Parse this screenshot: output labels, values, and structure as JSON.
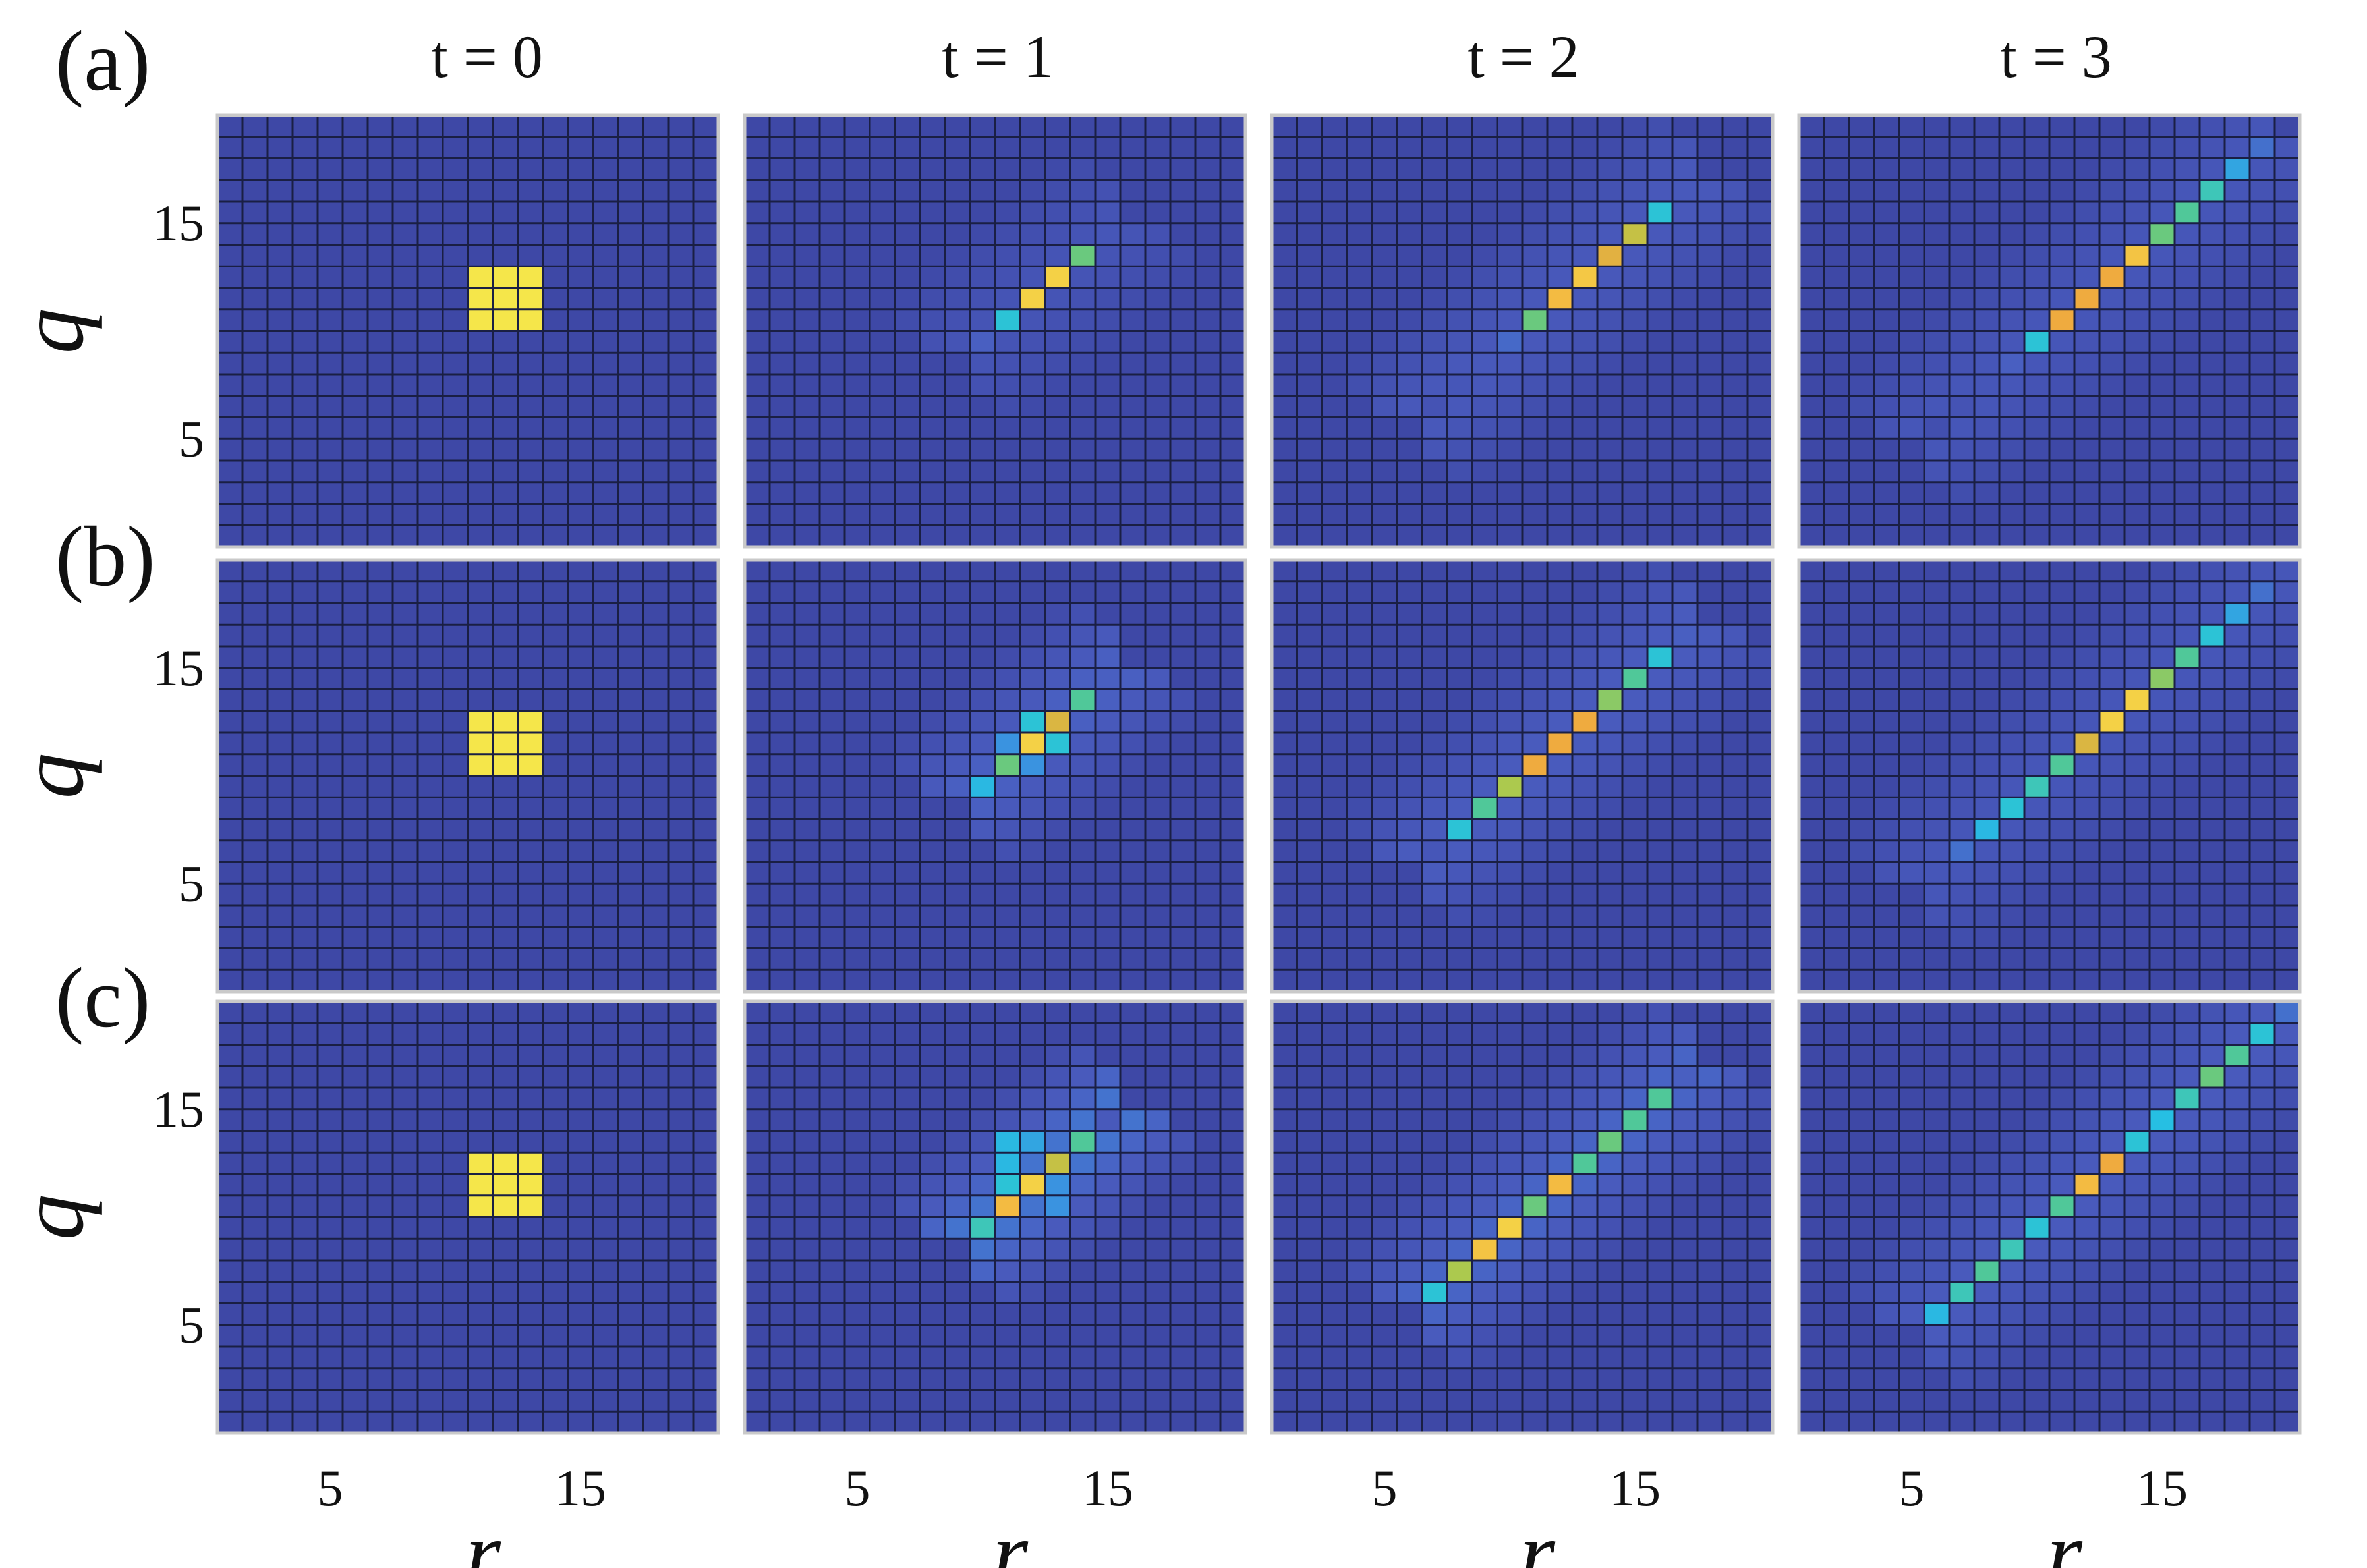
{
  "figure": {
    "row_labels": [
      "(a)",
      "(b)",
      "(c)"
    ],
    "col_titles": [
      "t = 0",
      "t = 1",
      "t = 2",
      "t = 3"
    ]
  },
  "colors": {
    "background": "#3e48a6",
    "grid_line": "#1a1f44",
    "panel_border": "#c9c9c9",
    "colormap": [
      "#3e48a6",
      "#4a5cbf",
      "#3c8ee0",
      "#25c2e3",
      "#57c98c",
      "#b6c947",
      "#f2a93f",
      "#f5e64a"
    ]
  },
  "chart_data": [
    {
      "type": "heatmap",
      "row": "(a)",
      "title": "t = 0",
      "xlabel": "",
      "ylabel": "q",
      "xticks": [],
      "yticks": [
        5,
        15
      ],
      "xlim": [
        0,
        20
      ],
      "ylim": [
        0,
        20
      ],
      "grid": true,
      "spread": 0,
      "cells": [
        [
          10,
          10,
          1
        ],
        [
          11,
          10,
          1
        ],
        [
          12,
          10,
          1
        ],
        [
          10,
          11,
          1
        ],
        [
          11,
          11,
          1
        ],
        [
          12,
          11,
          1
        ],
        [
          10,
          12,
          1
        ],
        [
          11,
          12,
          1
        ],
        [
          12,
          12,
          1
        ]
      ]
    },
    {
      "type": "heatmap",
      "row": "(a)",
      "title": "t = 1",
      "xlabel": "",
      "ylabel": "",
      "xticks": [],
      "yticks": [],
      "xlim": [
        0,
        20
      ],
      "ylim": [
        0,
        20
      ],
      "grid": true,
      "spread": 0.1,
      "cells": [
        [
          9,
          9,
          0.15
        ],
        [
          10,
          10,
          0.45
        ],
        [
          11,
          11,
          0.95
        ],
        [
          12,
          12,
          0.95
        ],
        [
          13,
          13,
          0.6
        ],
        [
          14,
          14,
          0.1
        ]
      ]
    },
    {
      "type": "heatmap",
      "row": "(a)",
      "title": "t = 2",
      "xlabel": "",
      "ylabel": "",
      "xticks": [],
      "yticks": [],
      "xlim": [
        0,
        20
      ],
      "ylim": [
        0,
        20
      ],
      "grid": true,
      "spread": 0.14,
      "cells": [
        [
          6,
          6,
          0.08
        ],
        [
          7,
          7,
          0.1
        ],
        [
          8,
          8,
          0.12
        ],
        [
          9,
          9,
          0.18
        ],
        [
          10,
          10,
          0.6
        ],
        [
          11,
          11,
          0.9
        ],
        [
          12,
          12,
          0.93
        ],
        [
          13,
          13,
          0.82
        ],
        [
          14,
          14,
          0.75
        ],
        [
          15,
          15,
          0.45
        ],
        [
          16,
          16,
          0.12
        ]
      ]
    },
    {
      "type": "heatmap",
      "row": "(a)",
      "title": "t = 3",
      "xlabel": "",
      "ylabel": "",
      "xticks": [],
      "yticks": [],
      "xlim": [
        0,
        20
      ],
      "ylim": [
        0,
        20
      ],
      "grid": true,
      "spread": 0.12,
      "cells": [
        [
          5,
          5,
          0.05
        ],
        [
          6,
          6,
          0.08
        ],
        [
          7,
          7,
          0.1
        ],
        [
          8,
          8,
          0.15
        ],
        [
          9,
          9,
          0.45
        ],
        [
          10,
          10,
          0.85
        ],
        [
          11,
          11,
          0.85
        ],
        [
          12,
          12,
          0.85
        ],
        [
          13,
          13,
          0.92
        ],
        [
          14,
          14,
          0.6
        ],
        [
          15,
          15,
          0.55
        ],
        [
          16,
          16,
          0.5
        ],
        [
          17,
          17,
          0.35
        ],
        [
          18,
          18,
          0.2
        ]
      ]
    },
    {
      "type": "heatmap",
      "row": "(b)",
      "title": "t = 0",
      "xlabel": "",
      "ylabel": "q",
      "xticks": [],
      "yticks": [
        5,
        15
      ],
      "xlim": [
        0,
        20
      ],
      "ylim": [
        0,
        20
      ],
      "grid": true,
      "spread": 0,
      "cells": [
        [
          10,
          10,
          1
        ],
        [
          11,
          10,
          1
        ],
        [
          12,
          10,
          1
        ],
        [
          10,
          11,
          1
        ],
        [
          11,
          11,
          1
        ],
        [
          12,
          11,
          1
        ],
        [
          10,
          12,
          1
        ],
        [
          11,
          12,
          1
        ],
        [
          12,
          12,
          1
        ]
      ]
    },
    {
      "type": "heatmap",
      "row": "(b)",
      "title": "t = 1",
      "xlabel": "",
      "ylabel": "",
      "xticks": [],
      "yticks": [],
      "xlim": [
        0,
        20
      ],
      "ylim": [
        0,
        20
      ],
      "grid": true,
      "spread": 0.18,
      "cells": [
        [
          9,
          9,
          0.4
        ],
        [
          10,
          10,
          0.6
        ],
        [
          11,
          11,
          0.95
        ],
        [
          12,
          12,
          0.8
        ],
        [
          13,
          13,
          0.55
        ],
        [
          11,
          12,
          0.45
        ],
        [
          12,
          11,
          0.45
        ],
        [
          10,
          11,
          0.3
        ],
        [
          11,
          10,
          0.3
        ],
        [
          14,
          14,
          0.15
        ]
      ]
    },
    {
      "type": "heatmap",
      "row": "(b)",
      "title": "t = 2",
      "xlabel": "",
      "ylabel": "",
      "xticks": [],
      "yticks": [],
      "xlim": [
        0,
        20
      ],
      "ylim": [
        0,
        20
      ],
      "grid": true,
      "spread": 0.16,
      "cells": [
        [
          7,
          7,
          0.45
        ],
        [
          8,
          8,
          0.55
        ],
        [
          9,
          9,
          0.7
        ],
        [
          10,
          10,
          0.85
        ],
        [
          11,
          11,
          0.85
        ],
        [
          12,
          12,
          0.85
        ],
        [
          13,
          13,
          0.65
        ],
        [
          14,
          14,
          0.55
        ],
        [
          15,
          15,
          0.45
        ],
        [
          16,
          16,
          0.15
        ],
        [
          6,
          6,
          0.1
        ]
      ]
    },
    {
      "type": "heatmap",
      "row": "(b)",
      "title": "t = 3",
      "xlabel": "",
      "ylabel": "",
      "xticks": [],
      "yticks": [],
      "xlim": [
        0,
        20
      ],
      "ylim": [
        0,
        20
      ],
      "grid": true,
      "spread": 0.12,
      "cells": [
        [
          5,
          5,
          0.1
        ],
        [
          6,
          6,
          0.2
        ],
        [
          7,
          7,
          0.4
        ],
        [
          8,
          8,
          0.45
        ],
        [
          9,
          9,
          0.5
        ],
        [
          10,
          10,
          0.55
        ],
        [
          11,
          11,
          0.8
        ],
        [
          12,
          12,
          0.95
        ],
        [
          13,
          13,
          0.95
        ],
        [
          14,
          14,
          0.65
        ],
        [
          15,
          15,
          0.55
        ],
        [
          16,
          16,
          0.45
        ],
        [
          17,
          17,
          0.35
        ],
        [
          18,
          18,
          0.2
        ],
        [
          19,
          19,
          0.1
        ]
      ]
    },
    {
      "type": "heatmap",
      "row": "(c)",
      "title": "t = 0",
      "xlabel": "r",
      "ylabel": "q",
      "xticks": [
        5,
        15
      ],
      "yticks": [
        5,
        15
      ],
      "xlim": [
        0,
        20
      ],
      "ylim": [
        0,
        20
      ],
      "grid": true,
      "spread": 0,
      "cells": [
        [
          10,
          10,
          1
        ],
        [
          11,
          10,
          1
        ],
        [
          12,
          10,
          1
        ],
        [
          10,
          11,
          1
        ],
        [
          11,
          11,
          1
        ],
        [
          12,
          11,
          1
        ],
        [
          10,
          12,
          1
        ],
        [
          11,
          12,
          1
        ],
        [
          12,
          12,
          1
        ]
      ]
    },
    {
      "type": "heatmap",
      "row": "(c)",
      "title": "t = 1",
      "xlabel": "r",
      "ylabel": "",
      "xticks": [
        5,
        15
      ],
      "yticks": [],
      "xlim": [
        0,
        20
      ],
      "ylim": [
        0,
        20
      ],
      "grid": true,
      "spread": 0.25,
      "cells": [
        [
          9,
          9,
          0.5
        ],
        [
          10,
          10,
          0.9
        ],
        [
          11,
          11,
          0.95
        ],
        [
          12,
          12,
          0.75
        ],
        [
          13,
          13,
          0.55
        ],
        [
          10,
          12,
          0.4
        ],
        [
          10,
          13,
          0.4
        ],
        [
          11,
          13,
          0.35
        ],
        [
          10,
          11,
          0.45
        ],
        [
          12,
          10,
          0.3
        ],
        [
          12,
          11,
          0.3
        ],
        [
          14,
          14,
          0.12
        ]
      ]
    },
    {
      "type": "heatmap",
      "row": "(c)",
      "title": "t = 2",
      "xlabel": "r",
      "ylabel": "",
      "xticks": [
        5,
        15
      ],
      "yticks": [],
      "xlim": [
        0,
        20
      ],
      "ylim": [
        0,
        20
      ],
      "grid": true,
      "spread": 0.2,
      "cells": [
        [
          6,
          6,
          0.45
        ],
        [
          7,
          7,
          0.7
        ],
        [
          8,
          8,
          0.92
        ],
        [
          9,
          9,
          0.95
        ],
        [
          10,
          10,
          0.6
        ],
        [
          11,
          11,
          0.9
        ],
        [
          12,
          12,
          0.55
        ],
        [
          13,
          13,
          0.6
        ],
        [
          14,
          14,
          0.55
        ],
        [
          15,
          15,
          0.55
        ],
        [
          16,
          16,
          0.15
        ]
      ]
    },
    {
      "type": "heatmap",
      "row": "(c)",
      "title": "t = 3",
      "xlabel": "r",
      "ylabel": "",
      "xticks": [
        5,
        15
      ],
      "yticks": [],
      "xlim": [
        0,
        20
      ],
      "ylim": [
        0,
        20
      ],
      "grid": true,
      "spread": 0.15,
      "cells": [
        [
          5,
          5,
          0.4
        ],
        [
          6,
          6,
          0.5
        ],
        [
          7,
          7,
          0.55
        ],
        [
          8,
          8,
          0.5
        ],
        [
          9,
          9,
          0.45
        ],
        [
          10,
          10,
          0.55
        ],
        [
          11,
          11,
          0.9
        ],
        [
          12,
          12,
          0.85
        ],
        [
          13,
          13,
          0.45
        ],
        [
          14,
          14,
          0.42
        ],
        [
          15,
          15,
          0.5
        ],
        [
          16,
          16,
          0.6
        ],
        [
          17,
          17,
          0.55
        ],
        [
          18,
          18,
          0.45
        ],
        [
          19,
          19,
          0.2
        ]
      ]
    }
  ]
}
